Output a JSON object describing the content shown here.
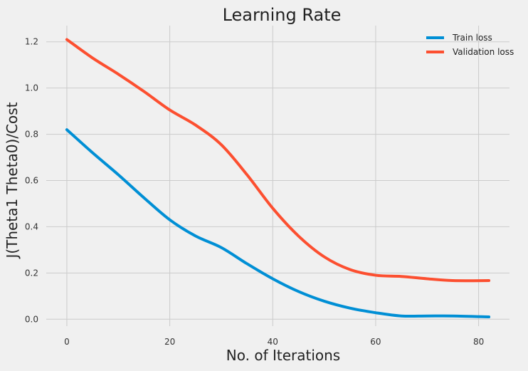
{
  "chart_data": {
    "type": "line",
    "title": "Learning Rate",
    "xlabel": "No. of Iterations",
    "ylabel": "J(Theta1 Theta0)/Cost",
    "xlim": [
      -4,
      86
    ],
    "ylim": [
      -0.03,
      1.27
    ],
    "xticks": [
      0,
      20,
      40,
      60,
      80
    ],
    "yticks": [
      0.0,
      0.2,
      0.4,
      0.6,
      0.8,
      1.0,
      1.2
    ],
    "ytick_labels": [
      "0.0",
      "0.2",
      "0.4",
      "0.6",
      "0.8",
      "1.0",
      "1.2"
    ],
    "xtick_labels": [
      "0",
      "20",
      "40",
      "60",
      "80"
    ],
    "grid": true,
    "legend_position": "top-right",
    "series": [
      {
        "name": "Train loss",
        "color": "#008fd5",
        "x": [
          0,
          5,
          10,
          15,
          20,
          25,
          30,
          35,
          40,
          45,
          50,
          55,
          60,
          65,
          70,
          75,
          82
        ],
        "y": [
          0.82,
          0.72,
          0.625,
          0.525,
          0.43,
          0.36,
          0.31,
          0.24,
          0.175,
          0.12,
          0.078,
          0.048,
          0.028,
          0.014,
          0.014,
          0.014,
          0.01
        ]
      },
      {
        "name": "Validation loss",
        "color": "#fc4f30",
        "x": [
          0,
          5,
          10,
          15,
          20,
          25,
          30,
          35,
          40,
          45,
          50,
          55,
          60,
          65,
          70,
          75,
          82
        ],
        "y": [
          1.21,
          1.13,
          1.06,
          0.985,
          0.905,
          0.84,
          0.755,
          0.625,
          0.48,
          0.36,
          0.27,
          0.215,
          0.19,
          0.185,
          0.175,
          0.167,
          0.167
        ]
      }
    ]
  }
}
